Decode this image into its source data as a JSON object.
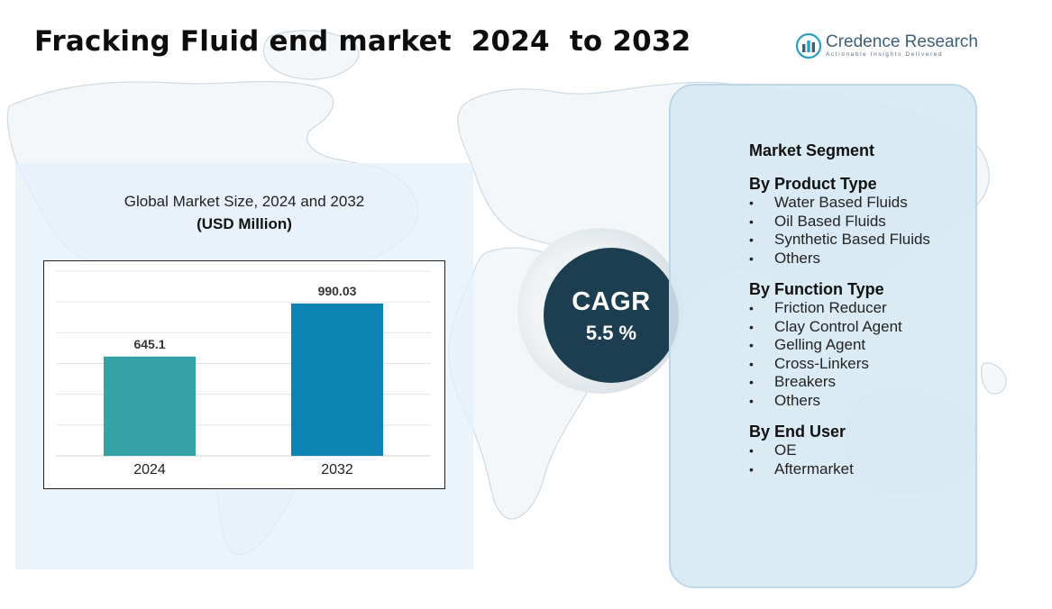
{
  "header": {
    "title": "Fracking Fluid end market  2024  to 2032"
  },
  "logo": {
    "name": "Credence Research",
    "tagline": "Actionable Insights Delivered",
    "icon": "bar-chart-globe-icon"
  },
  "chart_data": {
    "type": "bar",
    "title": "Global Market Size, 2024 and 2032",
    "unit": "(USD Million)",
    "categories": [
      "2024",
      "2032"
    ],
    "values": [
      645.1,
      990.03
    ],
    "value_labels": [
      "645.1",
      "990.03"
    ],
    "colors": [
      "#35a3a6",
      "#0b83b3"
    ],
    "ylim": [
      0,
      1200
    ],
    "grid": true
  },
  "cagr": {
    "label": "CAGR",
    "value": "5.5 %"
  },
  "segments": {
    "heading": "Market Segment",
    "groups": [
      {
        "title": "By Product Type",
        "items": [
          "Water Based Fluids",
          "Oil Based Fluids",
          "Synthetic Based Fluids",
          "Others"
        ]
      },
      {
        "title": "By Function Type",
        "items": [
          "Friction Reducer",
          "Clay Control Agent",
          "Gelling Agent",
          "Cross-Linkers",
          "Breakers",
          "Others"
        ]
      },
      {
        "title": "By End User",
        "items": [
          "OE",
          "Aftermarket"
        ]
      }
    ]
  },
  "colors": {
    "panel_bg": "#e4f0fa",
    "segment_bg": "#d6e8f3",
    "cagr_circle": "#1c3e50",
    "map_stroke": "#c9d6df"
  }
}
